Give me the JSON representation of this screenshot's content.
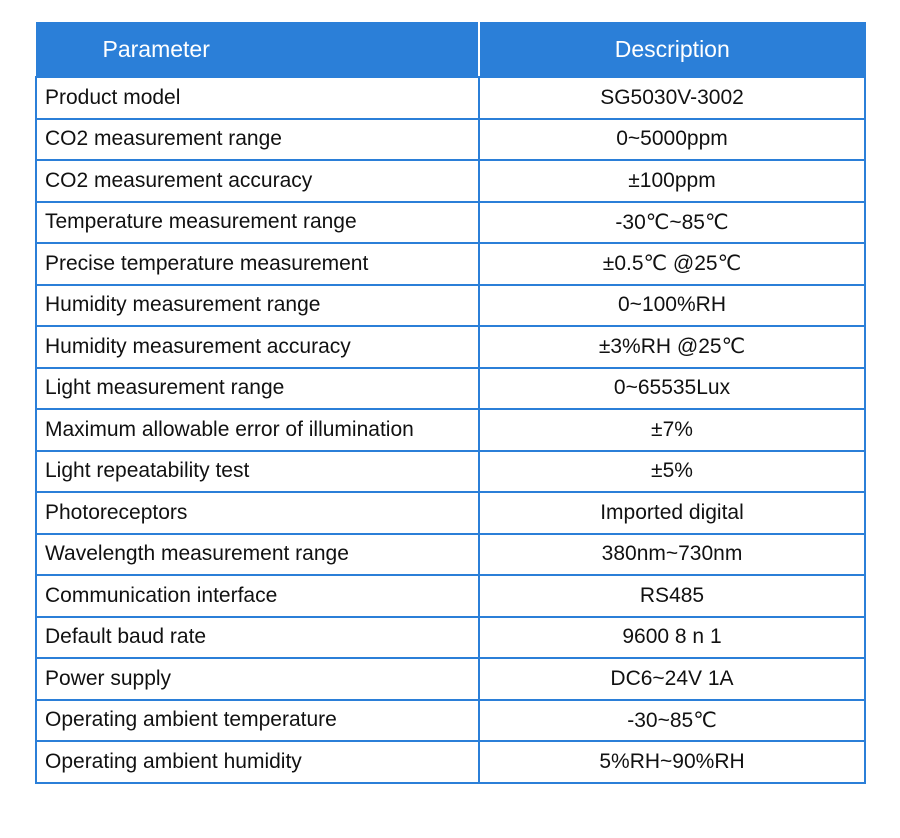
{
  "table": {
    "headers": {
      "parameter": "Parameter",
      "description": "Description"
    },
    "rows": [
      {
        "parameter": "Product model",
        "description": "SG5030V-3002"
      },
      {
        "parameter": "CO2 measurement range",
        "description": "0~5000ppm"
      },
      {
        "parameter": "CO2 measurement accuracy",
        "description": "±100ppm"
      },
      {
        "parameter": "Temperature measurement range",
        "description": "-30℃~85℃"
      },
      {
        "parameter": "Precise temperature measurement",
        "description": "±0.5℃ @25℃"
      },
      {
        "parameter": "Humidity measurement range",
        "description": "0~100%RH"
      },
      {
        "parameter": "Humidity measurement accuracy",
        "description": "±3%RH @25℃"
      },
      {
        "parameter": "Light measurement range",
        "description": "0~65535Lux"
      },
      {
        "parameter": "Maximum allowable error of illumination",
        "description": "±7%"
      },
      {
        "parameter": "Light repeatability test",
        "description": "±5%"
      },
      {
        "parameter": "Photoreceptors",
        "description": "Imported digital"
      },
      {
        "parameter": "Wavelength measurement range",
        "description": "380nm~730nm"
      },
      {
        "parameter": "Communication interface",
        "description": "RS485"
      },
      {
        "parameter": "Default baud rate",
        "description": "9600 8 n 1"
      },
      {
        "parameter": "Power supply",
        "description": "DC6~24V 1A"
      },
      {
        "parameter": "Operating ambient temperature",
        "description": "-30~85℃"
      },
      {
        "parameter": "Operating ambient humidity",
        "description": "5%RH~90%RH"
      }
    ]
  },
  "colors": {
    "header_background": "#2b7fd8",
    "header_text": "#ffffff",
    "border": "#2b7fd8",
    "cell_text": "#111111"
  }
}
